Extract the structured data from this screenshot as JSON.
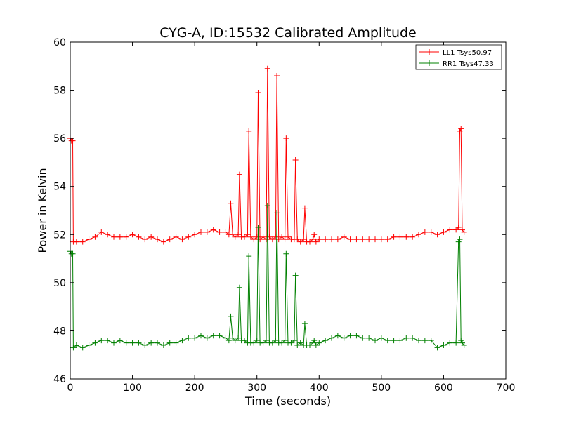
{
  "chart_data": {
    "type": "line",
    "title": "CYG-A, ID:15532 Calibrated Amplitude",
    "xlabel": "Time (seconds)",
    "ylabel": "Power in Kelvin",
    "xlim": [
      0,
      700
    ],
    "ylim": [
      46,
      60
    ],
    "xticks": [
      "0",
      "100",
      "200",
      "300",
      "400",
      "500",
      "600",
      "700"
    ],
    "yticks": [
      "46",
      "48",
      "50",
      "52",
      "54",
      "56",
      "58",
      "60"
    ],
    "grid": false,
    "legend_position": "top-right",
    "marker": "+",
    "series": [
      {
        "name": "LL1 Tsys50.97",
        "color": "#ff0000",
        "x": [
          0,
          2,
          4,
          5,
          10,
          20,
          30,
          40,
          50,
          60,
          70,
          80,
          90,
          100,
          110,
          120,
          130,
          140,
          150,
          160,
          170,
          180,
          190,
          200,
          210,
          220,
          230,
          240,
          250,
          255,
          258,
          261,
          265,
          270,
          272,
          275,
          280,
          285,
          287,
          290,
          295,
          300,
          302,
          305,
          310,
          315,
          317,
          320,
          325,
          330,
          332,
          335,
          340,
          345,
          347,
          350,
          355,
          360,
          362,
          365,
          370,
          375,
          377,
          380,
          385,
          390,
          392,
          395,
          400,
          410,
          420,
          430,
          440,
          450,
          460,
          470,
          480,
          490,
          500,
          510,
          520,
          530,
          540,
          550,
          560,
          570,
          580,
          590,
          600,
          610,
          620,
          624,
          626,
          628,
          630,
          633
        ],
        "values": [
          56.0,
          55.9,
          55.9,
          51.7,
          51.7,
          51.7,
          51.8,
          51.9,
          52.1,
          52.0,
          51.9,
          51.9,
          51.9,
          52.0,
          51.9,
          51.8,
          51.9,
          51.8,
          51.7,
          51.8,
          51.9,
          51.8,
          51.9,
          52.0,
          52.1,
          52.1,
          52.2,
          52.1,
          52.1,
          52.0,
          53.3,
          52.0,
          51.9,
          52.0,
          54.5,
          51.9,
          51.9,
          52.0,
          56.3,
          51.9,
          51.8,
          51.9,
          57.9,
          51.8,
          51.9,
          51.8,
          58.9,
          51.9,
          51.8,
          51.9,
          58.6,
          51.8,
          51.9,
          51.8,
          56.0,
          51.9,
          51.8,
          51.8,
          55.1,
          51.8,
          51.7,
          51.8,
          53.1,
          51.7,
          51.7,
          51.8,
          52.0,
          51.7,
          51.8,
          51.8,
          51.8,
          51.8,
          51.9,
          51.8,
          51.8,
          51.8,
          51.8,
          51.8,
          51.8,
          51.8,
          51.9,
          51.9,
          51.9,
          51.9,
          52.0,
          52.1,
          52.1,
          52.0,
          52.1,
          52.2,
          52.2,
          52.3,
          56.3,
          56.4,
          52.2,
          52.1
        ]
      },
      {
        "name": "RR1 Tsys47.33",
        "color": "#008000",
        "x": [
          0,
          2,
          4,
          5,
          10,
          20,
          30,
          40,
          50,
          60,
          70,
          80,
          90,
          100,
          110,
          120,
          130,
          140,
          150,
          160,
          170,
          180,
          190,
          200,
          210,
          220,
          230,
          240,
          250,
          255,
          258,
          261,
          265,
          270,
          272,
          275,
          280,
          285,
          287,
          290,
          295,
          300,
          302,
          305,
          310,
          315,
          317,
          320,
          325,
          330,
          332,
          335,
          340,
          345,
          347,
          350,
          355,
          360,
          362,
          365,
          370,
          375,
          377,
          380,
          385,
          390,
          392,
          395,
          400,
          410,
          420,
          430,
          440,
          450,
          460,
          470,
          480,
          490,
          500,
          510,
          520,
          530,
          540,
          550,
          560,
          570,
          580,
          590,
          600,
          610,
          620,
          624,
          626,
          628,
          630,
          633
        ],
        "values": [
          51.3,
          51.2,
          51.2,
          47.3,
          47.4,
          47.3,
          47.4,
          47.5,
          47.6,
          47.6,
          47.5,
          47.6,
          47.5,
          47.5,
          47.5,
          47.4,
          47.5,
          47.5,
          47.4,
          47.5,
          47.5,
          47.6,
          47.7,
          47.7,
          47.8,
          47.7,
          47.8,
          47.8,
          47.7,
          47.6,
          48.6,
          47.7,
          47.6,
          47.7,
          49.8,
          47.6,
          47.6,
          47.5,
          51.1,
          47.5,
          47.5,
          47.6,
          52.3,
          47.5,
          47.5,
          47.6,
          53.2,
          47.5,
          47.5,
          47.6,
          52.9,
          47.5,
          47.5,
          47.6,
          51.2,
          47.5,
          47.5,
          47.6,
          50.3,
          47.4,
          47.5,
          47.4,
          48.3,
          47.4,
          47.4,
          47.5,
          47.6,
          47.4,
          47.5,
          47.6,
          47.7,
          47.8,
          47.7,
          47.8,
          47.8,
          47.7,
          47.7,
          47.6,
          47.7,
          47.6,
          47.6,
          47.6,
          47.7,
          47.7,
          47.6,
          47.6,
          47.6,
          47.3,
          47.4,
          47.5,
          47.5,
          51.7,
          51.8,
          47.6,
          47.5,
          47.4
        ]
      }
    ]
  }
}
